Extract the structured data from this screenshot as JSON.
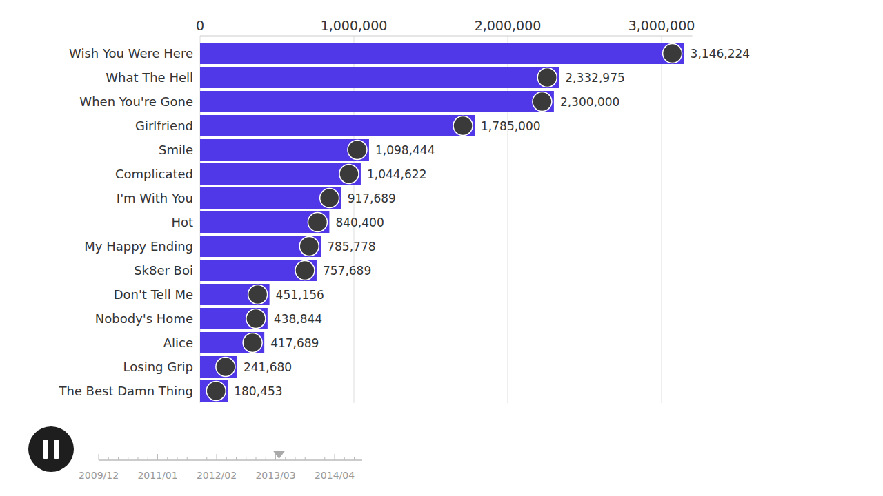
{
  "chart_data": {
    "type": "bar",
    "orientation": "horizontal",
    "categories": [
      "Wish You Were Here",
      "What The Hell",
      "When You're Gone",
      "Girlfriend",
      "Smile",
      "Complicated",
      "I'm With You",
      "Hot",
      "My Happy Ending",
      "Sk8er Boi",
      "Don't Tell Me",
      "Nobody's Home",
      "Alice",
      "Losing Grip",
      "The Best Damn Thing"
    ],
    "values": [
      3146224,
      2332975,
      2300000,
      1785000,
      1098444,
      1044622,
      917689,
      840400,
      785778,
      757689,
      451156,
      438844,
      417689,
      241680,
      180453
    ],
    "value_labels": [
      "3,146,224",
      "2,332,975",
      "2,300,000",
      "1,785,000",
      "1,098,444",
      "1,044,622",
      "917,689",
      "840,400",
      "785,778",
      "757,689",
      "451,156",
      "438,844",
      "417,689",
      "241,680",
      "180,453"
    ],
    "color": "#5038e8",
    "xlim": [
      0,
      3200000
    ],
    "xticks": [
      0,
      {
        "value": 1000000,
        "label": "1,000,000"
      },
      {
        "value": 2000000,
        "label": "2,000,000"
      },
      {
        "value": 3000000,
        "label": "3,000,000"
      }
    ],
    "grid": true,
    "data_labels": true
  },
  "timeline": {
    "labels": [
      "2009/12",
      "2011/01",
      "2012/02",
      "2013/03",
      "2014/04"
    ],
    "current": "2013/03"
  }
}
